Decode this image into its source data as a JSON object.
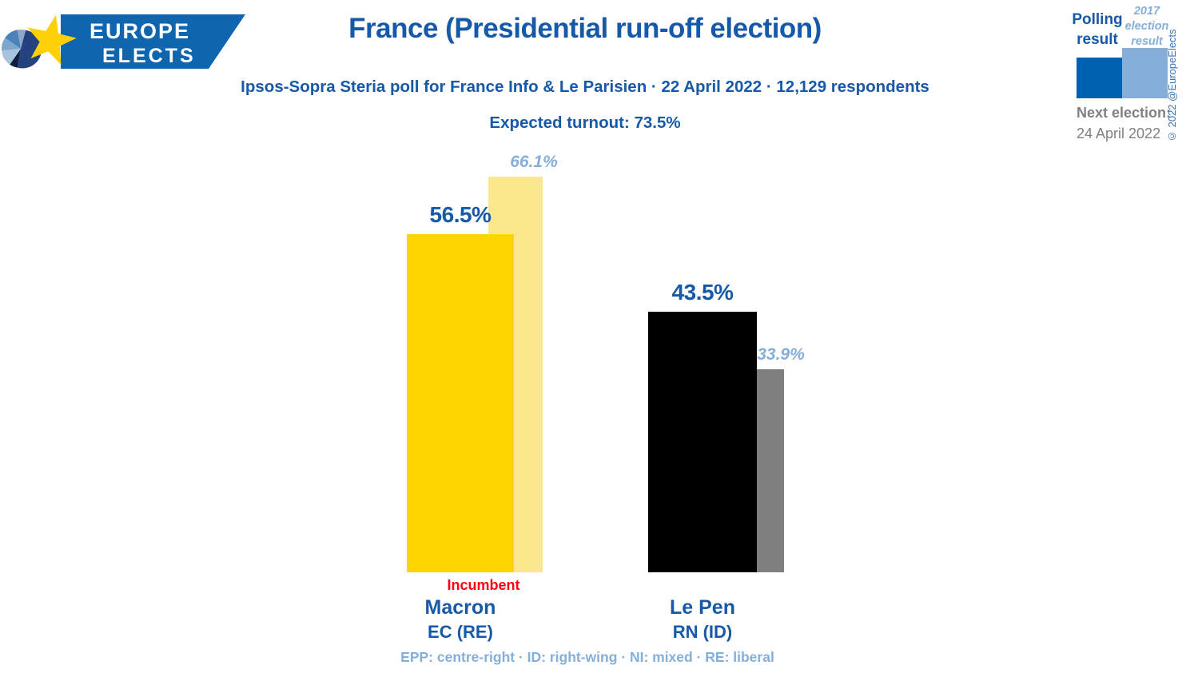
{
  "logo": {
    "text_top": "EUROPE",
    "text_bottom": "ELECTS"
  },
  "header": {
    "title": "France (Presidential run-off election)",
    "subtitle": "Ipsos-Sopra Steria poll for France Info & Le Parisien · 22 April 2022 · 12,129 respondents",
    "turnout": "Expected turnout: 73.5%"
  },
  "legend": {
    "polling_label": "Polling result",
    "previous_label": "2017 election result",
    "next_election_label": "Next election:",
    "next_election_date": "24 April 2022",
    "copyright": "© 2022 @EuropeElects"
  },
  "chart_data": {
    "type": "bar",
    "title": "France (Presidential run-off election)",
    "unit": "%",
    "categories": [
      "Macron",
      "Le Pen"
    ],
    "series": [
      {
        "name": "Polling result",
        "values": [
          56.5,
          43.5
        ]
      },
      {
        "name": "2017 election result",
        "values": [
          66.1,
          33.9
        ]
      }
    ],
    "value_labels": [
      [
        "56.5%",
        "43.5%"
      ],
      [
        "66.1%",
        "33.9%"
      ]
    ],
    "ylim": [
      0,
      70
    ],
    "grid": false,
    "legend_position": "top-right"
  },
  "candidates": [
    {
      "name": "Macron",
      "party": "EC (RE)",
      "note": "Incumbent",
      "bar_color": "#FFD500",
      "prev_color": "#FBE88D"
    },
    {
      "name": "Le Pen",
      "party": "RN (ID)",
      "note": "",
      "bar_color": "#000000",
      "prev_color": "#7F7F7F"
    }
  ],
  "footnote": "EPP: centre-right · ID: right-wing · NI: mixed · RE: liberal",
  "colors": {
    "text_blue": "#1659A8",
    "light_blue": "#85AFD9",
    "polling_bar_blue": "#0062AE",
    "previous_bar_blue": "#85AFD8",
    "incumbent_red": "#FF0013",
    "gray_text": "#7E8083",
    "copyright_blue": "#3A72B2",
    "logo_banner_blue": "#0F65AE",
    "logo_star_yellow": "#FFD105"
  }
}
